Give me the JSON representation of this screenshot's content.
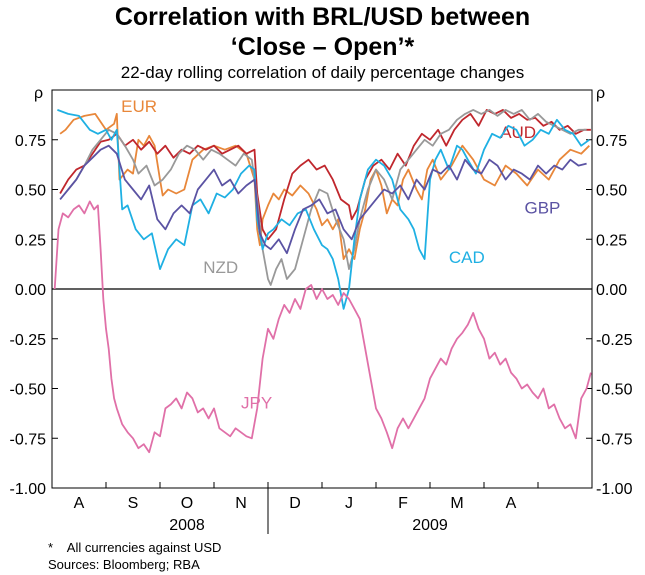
{
  "title_line1": "Correlation with BRL/USD between",
  "title_line2": "‘Close – Open’*",
  "subtitle": "22-day rolling correlation of daily percentage changes",
  "footnote": "*    All currencies against USD",
  "sources": "Sources: Bloomberg; RBA",
  "chart_data": {
    "type": "line",
    "title": "Correlation with BRL/USD between ‘Close – Open’*",
    "subtitle": "22-day rolling correlation of daily percentage changes",
    "ylabel_left": "ρ",
    "ylabel_right": "ρ",
    "ylim": [
      -1.0,
      1.0
    ],
    "yticks": [
      -1.0,
      -0.75,
      -0.5,
      -0.25,
      0.0,
      0.25,
      0.5,
      0.75
    ],
    "ytick_labels": [
      "-1.00",
      "-0.75",
      "-0.50",
      "-0.25",
      "0.00",
      "0.25",
      "0.50",
      "0.75"
    ],
    "xlim": [
      0,
      10
    ],
    "month_labels": [
      "A",
      "S",
      "O",
      "N",
      "D",
      "J",
      "F",
      "M",
      "A"
    ],
    "year_labels": [
      {
        "label": "2008",
        "x": 2.5
      },
      {
        "label": "2009",
        "x": 7.0
      }
    ],
    "year_divider_x": 4.0,
    "grid": false,
    "zero_line": true,
    "series": [
      {
        "name": "EUR",
        "color": "#e8873a",
        "label_pos": [
          1.28,
          0.89
        ],
        "x": [
          0.15,
          0.25,
          0.4,
          0.6,
          0.8,
          1.0,
          1.15,
          1.2,
          1.25,
          1.4,
          1.5,
          1.6,
          1.7,
          1.8,
          1.9,
          2.0,
          2.05,
          2.15,
          2.3,
          2.45,
          2.6,
          2.8,
          3.0,
          3.2,
          3.4,
          3.6,
          3.75,
          3.8,
          3.85,
          3.9,
          4.0,
          4.1,
          4.2,
          4.3,
          4.45,
          4.6,
          4.75,
          4.9,
          5.0,
          5.1,
          5.2,
          5.3,
          5.4,
          5.5,
          5.6,
          5.7,
          5.8,
          5.9,
          6.0,
          6.1,
          6.2,
          6.3,
          6.4,
          6.5,
          6.6,
          6.75,
          6.85,
          6.95,
          7.05,
          7.2,
          7.4,
          7.6,
          7.8,
          8.0,
          8.2,
          8.4,
          8.6,
          8.8,
          9.0,
          9.2,
          9.4,
          9.6,
          9.8,
          9.95
        ],
        "values": [
          0.78,
          0.8,
          0.85,
          0.87,
          0.88,
          0.8,
          0.83,
          0.88,
          0.55,
          0.6,
          0.58,
          0.75,
          0.72,
          0.77,
          0.72,
          0.55,
          0.47,
          0.5,
          0.48,
          0.5,
          0.65,
          0.7,
          0.72,
          0.7,
          0.72,
          0.68,
          0.55,
          0.3,
          0.22,
          0.35,
          0.42,
          0.48,
          0.45,
          0.5,
          0.47,
          0.52,
          0.48,
          0.4,
          0.32,
          0.35,
          0.3,
          0.35,
          0.15,
          0.2,
          0.15,
          0.3,
          0.4,
          0.55,
          0.6,
          0.52,
          0.38,
          0.45,
          0.42,
          0.55,
          0.6,
          0.5,
          0.45,
          0.6,
          0.65,
          0.55,
          0.62,
          0.72,
          0.65,
          0.55,
          0.52,
          0.62,
          0.58,
          0.52,
          0.6,
          0.55,
          0.65,
          0.7,
          0.68,
          0.72
        ]
      },
      {
        "name": "AUD",
        "color": "#c0272d",
        "label_pos": [
          8.3,
          0.76
        ],
        "x": [
          0.15,
          0.3,
          0.45,
          0.6,
          0.75,
          0.9,
          1.05,
          1.2,
          1.35,
          1.5,
          1.65,
          1.8,
          1.95,
          2.1,
          2.25,
          2.4,
          2.55,
          2.7,
          2.85,
          3.0,
          3.15,
          3.3,
          3.45,
          3.6,
          3.75,
          3.8,
          3.9,
          4.0,
          4.15,
          4.3,
          4.45,
          4.6,
          4.75,
          4.9,
          5.05,
          5.2,
          5.35,
          5.5,
          5.55,
          5.65,
          5.8,
          5.95,
          6.1,
          6.25,
          6.4,
          6.55,
          6.7,
          6.85,
          7.0,
          7.15,
          7.3,
          7.45,
          7.6,
          7.75,
          7.9,
          8.05,
          8.2,
          8.35,
          8.5,
          8.65,
          8.8,
          8.95,
          9.1,
          9.25,
          9.4,
          9.55,
          9.7,
          9.85,
          9.98
        ],
        "values": [
          0.48,
          0.55,
          0.6,
          0.62,
          0.68,
          0.74,
          0.75,
          0.78,
          0.72,
          0.75,
          0.7,
          0.74,
          0.68,
          0.72,
          0.66,
          0.7,
          0.68,
          0.72,
          0.7,
          0.72,
          0.68,
          0.7,
          0.72,
          0.68,
          0.7,
          0.48,
          0.3,
          0.25,
          0.3,
          0.45,
          0.58,
          0.62,
          0.65,
          0.6,
          0.62,
          0.55,
          0.45,
          0.42,
          0.35,
          0.4,
          0.55,
          0.62,
          0.65,
          0.6,
          0.68,
          0.62,
          0.72,
          0.78,
          0.75,
          0.8,
          0.72,
          0.8,
          0.85,
          0.88,
          0.82,
          0.9,
          0.88,
          0.9,
          0.86,
          0.88,
          0.85,
          0.86,
          0.82,
          0.84,
          0.8,
          0.82,
          0.78,
          0.8,
          0.8
        ]
      },
      {
        "name": "NZD",
        "color": "#999999",
        "label_pos": [
          2.8,
          0.08
        ],
        "x": [
          0.3,
          0.45,
          0.6,
          0.75,
          0.9,
          1.05,
          1.2,
          1.35,
          1.5,
          1.6,
          1.75,
          1.9,
          2.05,
          2.2,
          2.35,
          2.5,
          2.65,
          2.8,
          2.95,
          3.1,
          3.25,
          3.4,
          3.55,
          3.7,
          3.8,
          3.9,
          4.0,
          4.05,
          4.15,
          4.25,
          4.35,
          4.5,
          4.65,
          4.8,
          4.95,
          5.1,
          5.25,
          5.4,
          5.5,
          5.6,
          5.7,
          5.85,
          6.0,
          6.15,
          6.3,
          6.45,
          6.6,
          6.75,
          6.9,
          7.05,
          7.2,
          7.35,
          7.5,
          7.65,
          7.8,
          7.95,
          8.1,
          8.25,
          8.4,
          8.55,
          8.7,
          8.85,
          9.0,
          9.15,
          9.3,
          9.45,
          9.6,
          9.75,
          9.9
        ],
        "values": [
          0.5,
          0.55,
          0.62,
          0.7,
          0.75,
          0.8,
          0.78,
          0.72,
          0.65,
          0.58,
          0.62,
          0.52,
          0.55,
          0.6,
          0.68,
          0.72,
          0.7,
          0.65,
          0.7,
          0.68,
          0.65,
          0.62,
          0.68,
          0.65,
          0.45,
          0.2,
          0.05,
          0.02,
          0.1,
          0.15,
          0.05,
          0.1,
          0.25,
          0.4,
          0.5,
          0.48,
          0.35,
          0.25,
          0.1,
          0.2,
          0.35,
          0.5,
          0.6,
          0.55,
          0.45,
          0.6,
          0.65,
          0.7,
          0.75,
          0.72,
          0.78,
          0.8,
          0.85,
          0.88,
          0.9,
          0.88,
          0.9,
          0.87,
          0.9,
          0.88,
          0.9,
          0.85,
          0.88,
          0.84,
          0.82,
          0.8,
          0.78,
          0.8,
          0.8
        ]
      },
      {
        "name": "CAD",
        "color": "#1fb0e3",
        "label_pos": [
          7.35,
          0.13
        ],
        "x": [
          0.1,
          0.3,
          0.5,
          0.7,
          0.85,
          1.0,
          1.1,
          1.2,
          1.3,
          1.4,
          1.55,
          1.7,
          1.85,
          2.0,
          2.15,
          2.3,
          2.45,
          2.6,
          2.75,
          2.9,
          3.05,
          3.2,
          3.35,
          3.5,
          3.65,
          3.75,
          3.8,
          3.9,
          4.0,
          4.1,
          4.25,
          4.4,
          4.55,
          4.7,
          4.85,
          5.0,
          5.1,
          5.2,
          5.3,
          5.4,
          5.5,
          5.6,
          5.7,
          5.85,
          6.0,
          6.15,
          6.3,
          6.45,
          6.6,
          6.7,
          6.8,
          6.9,
          7.0,
          7.1,
          7.2,
          7.35,
          7.5,
          7.6,
          7.7,
          7.85,
          8.0,
          8.15,
          8.3,
          8.45,
          8.6,
          8.75,
          8.9,
          9.05,
          9.2,
          9.35,
          9.5,
          9.65,
          9.8,
          9.95
        ],
        "values": [
          0.9,
          0.88,
          0.87,
          0.8,
          0.78,
          0.8,
          0.75,
          0.8,
          0.4,
          0.42,
          0.3,
          0.25,
          0.28,
          0.1,
          0.2,
          0.25,
          0.22,
          0.42,
          0.45,
          0.38,
          0.48,
          0.46,
          0.5,
          0.58,
          0.62,
          0.6,
          0.35,
          0.2,
          0.28,
          0.3,
          0.35,
          0.32,
          0.38,
          0.4,
          0.3,
          0.22,
          0.2,
          0.15,
          0.05,
          -0.1,
          0.0,
          0.25,
          0.45,
          0.6,
          0.65,
          0.62,
          0.55,
          0.4,
          0.35,
          0.3,
          0.2,
          0.15,
          0.55,
          0.65,
          0.7,
          0.6,
          0.72,
          0.7,
          0.65,
          0.58,
          0.7,
          0.78,
          0.76,
          0.82,
          0.8,
          0.72,
          0.75,
          0.8,
          0.78,
          0.85,
          0.8,
          0.78,
          0.72,
          0.75
        ]
      },
      {
        "name": "GBP",
        "color": "#5b53a3",
        "label_pos": [
          8.75,
          0.38
        ],
        "x": [
          0.15,
          0.3,
          0.45,
          0.6,
          0.75,
          0.9,
          1.05,
          1.2,
          1.35,
          1.5,
          1.65,
          1.8,
          1.95,
          2.1,
          2.25,
          2.4,
          2.55,
          2.7,
          2.85,
          3.0,
          3.15,
          3.3,
          3.45,
          3.6,
          3.75,
          3.85,
          3.95,
          4.05,
          4.2,
          4.35,
          4.5,
          4.65,
          4.8,
          4.95,
          5.1,
          5.25,
          5.4,
          5.55,
          5.7,
          5.85,
          6.0,
          6.15,
          6.3,
          6.45,
          6.6,
          6.75,
          6.9,
          7.05,
          7.2,
          7.35,
          7.5,
          7.65,
          7.8,
          7.95,
          8.1,
          8.25,
          8.4,
          8.55,
          8.7,
          8.85,
          9.0,
          9.15,
          9.3,
          9.45,
          9.6,
          9.75,
          9.9
        ],
        "values": [
          0.45,
          0.5,
          0.55,
          0.62,
          0.66,
          0.7,
          0.72,
          0.68,
          0.55,
          0.5,
          0.45,
          0.52,
          0.35,
          0.3,
          0.38,
          0.42,
          0.38,
          0.5,
          0.55,
          0.6,
          0.52,
          0.55,
          0.48,
          0.52,
          0.55,
          0.28,
          0.22,
          0.2,
          0.25,
          0.18,
          0.3,
          0.4,
          0.42,
          0.45,
          0.38,
          0.4,
          0.3,
          0.25,
          0.35,
          0.4,
          0.45,
          0.5,
          0.48,
          0.52,
          0.45,
          0.55,
          0.5,
          0.6,
          0.58,
          0.62,
          0.55,
          0.65,
          0.6,
          0.58,
          0.65,
          0.62,
          0.55,
          0.6,
          0.58,
          0.55,
          0.62,
          0.58,
          0.62,
          0.6,
          0.65,
          0.62,
          0.63
        ]
      },
      {
        "name": "JPY",
        "color": "#e070a8",
        "label_pos": [
          3.5,
          -0.6
        ],
        "x": [
          0.05,
          0.12,
          0.2,
          0.3,
          0.4,
          0.5,
          0.6,
          0.7,
          0.78,
          0.85,
          0.9,
          0.95,
          1.0,
          1.05,
          1.1,
          1.15,
          1.2,
          1.3,
          1.4,
          1.5,
          1.6,
          1.7,
          1.8,
          1.9,
          2.0,
          2.1,
          2.2,
          2.3,
          2.4,
          2.5,
          2.6,
          2.7,
          2.8,
          2.9,
          3.0,
          3.1,
          3.2,
          3.3,
          3.4,
          3.5,
          3.6,
          3.7,
          3.8,
          3.9,
          4.0,
          4.1,
          4.2,
          4.3,
          4.4,
          4.5,
          4.6,
          4.7,
          4.8,
          4.9,
          5.0,
          5.1,
          5.2,
          5.3,
          5.4,
          5.5,
          5.6,
          5.7,
          5.8,
          5.9,
          6.0,
          6.1,
          6.2,
          6.3,
          6.4,
          6.5,
          6.6,
          6.7,
          6.8,
          6.9,
          7.0,
          7.1,
          7.2,
          7.3,
          7.4,
          7.5,
          7.6,
          7.7,
          7.8,
          7.9,
          8.0,
          8.1,
          8.2,
          8.3,
          8.4,
          8.5,
          8.6,
          8.7,
          8.8,
          8.9,
          9.0,
          9.1,
          9.2,
          9.3,
          9.4,
          9.5,
          9.6,
          9.7,
          9.8,
          9.9,
          9.98
        ],
        "values": [
          0.0,
          0.3,
          0.38,
          0.36,
          0.4,
          0.42,
          0.38,
          0.44,
          0.4,
          0.42,
          0.2,
          -0.05,
          -0.2,
          -0.3,
          -0.45,
          -0.55,
          -0.6,
          -0.68,
          -0.72,
          -0.75,
          -0.8,
          -0.78,
          -0.82,
          -0.72,
          -0.74,
          -0.6,
          -0.58,
          -0.55,
          -0.6,
          -0.52,
          -0.55,
          -0.62,
          -0.6,
          -0.65,
          -0.6,
          -0.7,
          -0.72,
          -0.74,
          -0.7,
          -0.72,
          -0.74,
          -0.75,
          -0.6,
          -0.35,
          -0.2,
          -0.25,
          -0.15,
          -0.08,
          -0.12,
          -0.05,
          -0.1,
          0.0,
          0.02,
          -0.05,
          0.0,
          -0.05,
          -0.03,
          -0.08,
          -0.02,
          -0.05,
          -0.1,
          -0.15,
          -0.3,
          -0.45,
          -0.6,
          -0.65,
          -0.72,
          -0.8,
          -0.7,
          -0.65,
          -0.7,
          -0.65,
          -0.6,
          -0.55,
          -0.45,
          -0.4,
          -0.35,
          -0.38,
          -0.3,
          -0.25,
          -0.22,
          -0.18,
          -0.12,
          -0.2,
          -0.25,
          -0.35,
          -0.32,
          -0.38,
          -0.35,
          -0.42,
          -0.45,
          -0.5,
          -0.48,
          -0.52,
          -0.55,
          -0.5,
          -0.6,
          -0.58,
          -0.65,
          -0.7,
          -0.68,
          -0.75,
          -0.55,
          -0.5,
          -0.42
        ]
      }
    ]
  }
}
